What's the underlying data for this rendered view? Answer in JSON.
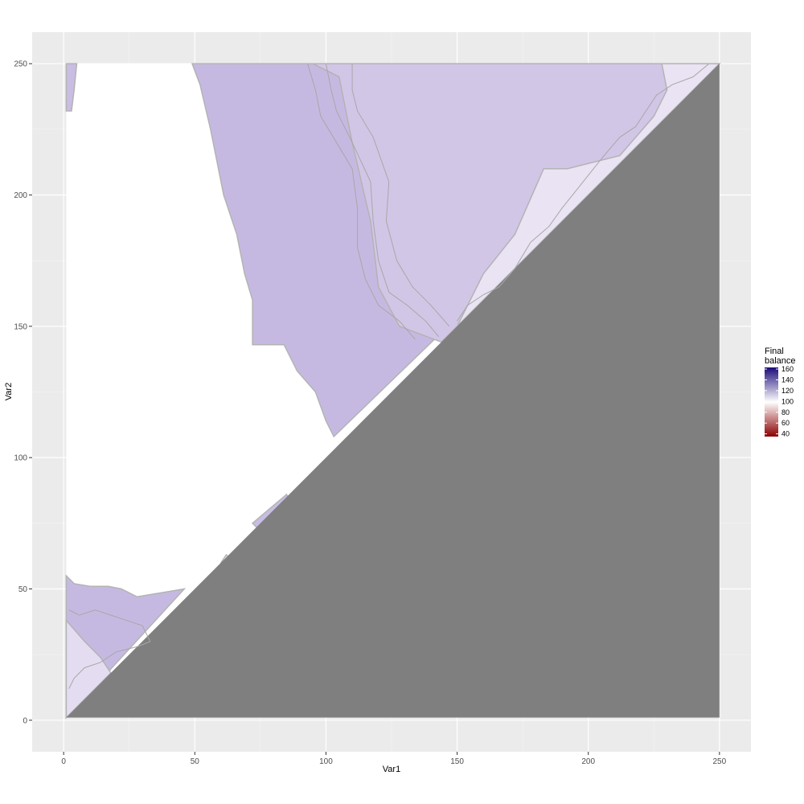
{
  "chart_data": {
    "type": "heatmap",
    "title": "",
    "xlabel": "Var1",
    "ylabel": "Var2",
    "xlim": [
      -12,
      262
    ],
    "ylim": [
      -12,
      262
    ],
    "x_ticks": [
      0,
      50,
      100,
      150,
      200,
      250
    ],
    "y_ticks": [
      0,
      50,
      100,
      150,
      200,
      250
    ],
    "grid": true,
    "legend_placement": "right",
    "legend": {
      "title_lines": [
        "Final",
        "balance"
      ],
      "ticks": [
        160,
        140,
        120,
        100,
        80,
        60,
        40
      ],
      "range": [
        35,
        163
      ],
      "colors": {
        "low": "#8b0000",
        "mid": "#ffffff",
        "high": "#1a0a7a"
      }
    },
    "lower_triangle_fill": "#7f7f7f",
    "empty_region_fill": "#ffffff",
    "regions": [
      {
        "name": "main-upper-region",
        "approx_value": 118,
        "color": "#c6b9e1",
        "polygon": [
          [
            49,
            250
          ],
          [
            52,
            242
          ],
          [
            56,
            225
          ],
          [
            58,
            215
          ],
          [
            61,
            200
          ],
          [
            66,
            185
          ],
          [
            69,
            170
          ],
          [
            72,
            160
          ],
          [
            72,
            143
          ],
          [
            84,
            143
          ],
          [
            89,
            133
          ],
          [
            96,
            125
          ],
          [
            100,
            114
          ],
          [
            103,
            108
          ],
          [
            250,
            250
          ]
        ]
      },
      {
        "name": "upper-lighter-band",
        "approx_value": 112,
        "color": "#d2c6e7",
        "polygon": [
          [
            95,
            250
          ],
          [
            250,
            250
          ],
          [
            230,
            230
          ],
          [
            200,
            200
          ],
          [
            180,
            180
          ],
          [
            150,
            150
          ],
          [
            144,
            144
          ],
          [
            128,
            150
          ],
          [
            120,
            165
          ],
          [
            117,
            190
          ],
          [
            110,
            220
          ],
          [
            105,
            245
          ]
        ]
      },
      {
        "name": "near-diagonal-light-region",
        "approx_value": 104,
        "color": "#e9e3f3",
        "polygon": [
          [
            150,
            150
          ],
          [
            160,
            170
          ],
          [
            172,
            185
          ],
          [
            183,
            210
          ],
          [
            192,
            210
          ],
          [
            212,
            215
          ],
          [
            225,
            230
          ],
          [
            230,
            240
          ],
          [
            228,
            250
          ],
          [
            250,
            250
          ]
        ]
      },
      {
        "name": "left-edge-strip",
        "approx_value": 115,
        "color": "#c9bde3",
        "polygon": [
          [
            1,
            250
          ],
          [
            5,
            250
          ],
          [
            4,
            240
          ],
          [
            3,
            232
          ],
          [
            1,
            232
          ]
        ]
      },
      {
        "name": "lower-left-region",
        "approx_value": 115,
        "color": "#c6b9e1",
        "polygon": [
          [
            1,
            55
          ],
          [
            4,
            52
          ],
          [
            10,
            51
          ],
          [
            17,
            51
          ],
          [
            22,
            50
          ],
          [
            28,
            47
          ],
          [
            34,
            48
          ],
          [
            40,
            49
          ],
          [
            46,
            50
          ],
          [
            1,
            1
          ],
          [
            1,
            55
          ]
        ]
      },
      {
        "name": "lower-left-light-region",
        "approx_value": 104,
        "color": "#e4ddf1",
        "polygon": [
          [
            1,
            38
          ],
          [
            8,
            30
          ],
          [
            14,
            24
          ],
          [
            18,
            18
          ],
          [
            16,
            16
          ],
          [
            10,
            10
          ],
          [
            4,
            4
          ],
          [
            1,
            1
          ]
        ]
      },
      {
        "name": "mid-diagonal-strip",
        "approx_value": 115,
        "color": "#c9bde3",
        "polygon": [
          [
            72,
            75
          ],
          [
            85,
            86
          ],
          [
            86,
            84
          ],
          [
            74,
            73
          ]
        ]
      },
      {
        "name": "small-diagonal-strip",
        "approx_value": 104,
        "color": "#e4ddf1",
        "polygon": [
          [
            60,
            60
          ],
          [
            62,
            63
          ],
          [
            63,
            62
          ],
          [
            61,
            59
          ]
        ]
      }
    ],
    "contours": [
      [
        [
          93,
          250
        ],
        [
          96,
          240
        ],
        [
          98,
          230
        ],
        [
          104,
          220
        ],
        [
          110,
          210
        ],
        [
          112,
          195
        ],
        [
          112,
          180
        ],
        [
          115,
          168
        ],
        [
          120,
          158
        ],
        [
          128,
          152
        ],
        [
          134,
          145
        ]
      ],
      [
        [
          100,
          250
        ],
        [
          102,
          240
        ],
        [
          104,
          232
        ],
        [
          110,
          220
        ],
        [
          117,
          205
        ],
        [
          118,
          190
        ],
        [
          120,
          175
        ],
        [
          124,
          163
        ],
        [
          131,
          158
        ],
        [
          138,
          152
        ],
        [
          143,
          146
        ]
      ],
      [
        [
          110,
          250
        ],
        [
          110,
          240
        ],
        [
          112,
          232
        ],
        [
          118,
          222
        ],
        [
          124,
          205
        ],
        [
          123,
          190
        ],
        [
          127,
          175
        ],
        [
          133,
          165
        ],
        [
          140,
          158
        ],
        [
          147,
          150
        ]
      ],
      [
        [
          246,
          250
        ],
        [
          240,
          245
        ],
        [
          232,
          242
        ],
        [
          226,
          238
        ],
        [
          222,
          232
        ],
        [
          218,
          226
        ],
        [
          212,
          222
        ],
        [
          206,
          215
        ],
        [
          202,
          210
        ],
        [
          198,
          205
        ],
        [
          194,
          200
        ],
        [
          190,
          195
        ],
        [
          185,
          188
        ],
        [
          178,
          182
        ],
        [
          172,
          172
        ],
        [
          166,
          165
        ],
        [
          160,
          162
        ],
        [
          154,
          158
        ],
        [
          150,
          152
        ]
      ],
      [
        [
          2,
          42
        ],
        [
          6,
          40
        ],
        [
          12,
          42
        ],
        [
          18,
          40
        ],
        [
          24,
          38
        ],
        [
          30,
          36
        ],
        [
          33,
          30
        ],
        [
          28,
          28
        ],
        [
          20,
          26
        ],
        [
          14,
          22
        ],
        [
          8,
          20
        ],
        [
          4,
          16
        ],
        [
          2,
          12
        ]
      ]
    ]
  }
}
